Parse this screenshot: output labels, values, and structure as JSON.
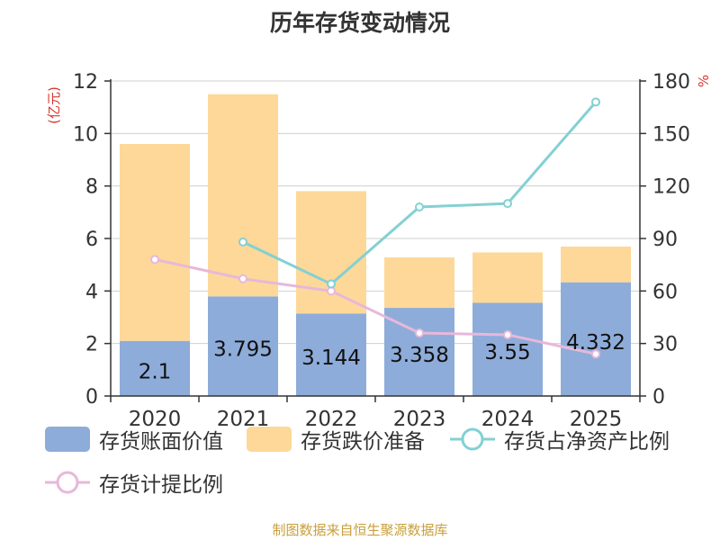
{
  "source_note": "制图数据来自恒生聚源数据库",
  "colors": {
    "book_value": "#8eacd9",
    "impairment": "#fdd898",
    "inv_to_net_assets": "#84d0d3",
    "provision_ratio": "#e7b8da",
    "axis_unit_red": "#d9352f"
  },
  "chart_data": {
    "type": "bar",
    "title": "历年存货变动情况",
    "categories": [
      "2020",
      "2021",
      "2022",
      "2023",
      "2024",
      "2025"
    ],
    "left_axis": {
      "label": "(亿元)",
      "ylim": [
        0,
        12
      ],
      "ticks": [
        "0",
        "2",
        "4",
        "6",
        "8",
        "10",
        "12"
      ]
    },
    "right_axis": {
      "label": "%",
      "ylim": [
        0,
        180
      ],
      "ticks": [
        "0",
        "30",
        "60",
        "90",
        "120",
        "150",
        "180"
      ]
    },
    "grid": true,
    "legend_position": "bottom",
    "series": [
      {
        "name": "存货账面价值",
        "type": "bar",
        "stack": "inventory",
        "axis": "left",
        "values": [
          2.1,
          3.795,
          3.144,
          3.358,
          3.55,
          4.332
        ],
        "labels": [
          "2.1",
          "3.795",
          "3.144",
          "3.358",
          "3.55",
          "4.332"
        ]
      },
      {
        "name": "存货跌价准备",
        "type": "bar",
        "stack": "inventory",
        "axis": "left",
        "values": [
          7.5,
          7.7,
          4.66,
          1.92,
          1.92,
          1.36
        ]
      },
      {
        "name": "存货占净资产比例",
        "type": "line",
        "axis": "right",
        "values": [
          null,
          88,
          64,
          108,
          110,
          168
        ]
      },
      {
        "name": "存货计提比例",
        "type": "line",
        "axis": "right",
        "values": [
          78,
          67,
          60,
          36,
          35,
          24
        ]
      }
    ]
  }
}
